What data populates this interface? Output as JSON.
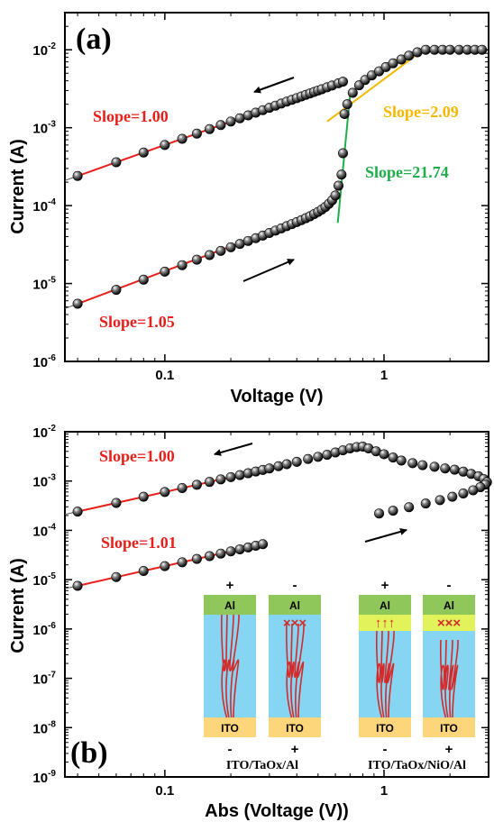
{
  "colors": {
    "red": "#e8201b",
    "orange": "#f5b800",
    "green": "#1fae4a",
    "fit_gray": "#555555",
    "marker": "#000000",
    "al": "#8fc75a",
    "oxide": "#86d6f3",
    "nio": "#e2f25a",
    "ito": "#fdd57a",
    "filament": "#d42a2a"
  },
  "chart_data": [
    {
      "type": "scatter",
      "panel_label": "(a)",
      "title": "",
      "xlabel": "Voltage (V)",
      "ylabel": "Current (A)",
      "xscale": "log",
      "yscale": "log",
      "xlim": [
        0.035,
        3.0
      ],
      "ylim": [
        1e-06,
        0.03
      ],
      "xticks": [
        0.1,
        1
      ],
      "xtick_labels": [
        "0.1",
        "1"
      ],
      "yticks": [
        1e-06,
        1e-05,
        0.0001,
        0.001,
        0.01
      ],
      "ytick_labels": [
        [
          "10",
          "-6"
        ],
        [
          "10",
          "-5"
        ],
        [
          "10",
          "-4"
        ],
        [
          "10",
          "-3"
        ],
        [
          "10",
          "-2"
        ]
      ],
      "series": [
        {
          "x": [
            0.04,
            0.06,
            0.08,
            0.1,
            0.12,
            0.14,
            0.16,
            0.18,
            0.2,
            0.22,
            0.24,
            0.26,
            0.28,
            0.3,
            0.32,
            0.34,
            0.36,
            0.38,
            0.4,
            0.42,
            0.44,
            0.46,
            0.48,
            0.5,
            0.52,
            0.54,
            0.56,
            0.58,
            0.6,
            0.62,
            0.64
          ],
          "y": [
            5.5e-06,
            8.3e-06,
            1.12e-05,
            1.42e-05,
            1.72e-05,
            2.02e-05,
            2.32e-05,
            2.62e-05,
            2.92e-05,
            3.22e-05,
            3.52e-05,
            3.82e-05,
            4.12e-05,
            4.45e-05,
            4.78e-05,
            5.1e-05,
            5.45e-05,
            5.8e-05,
            6.15e-05,
            6.5e-05,
            6.9e-05,
            7.3e-05,
            7.8e-05,
            8.3e-05,
            8.9e-05,
            9.6e-05,
            0.000105,
            0.000117,
            0.000135,
            0.00018,
            0.00025
          ]
        },
        {
          "x": [
            0.65,
            0.66
          ],
          "y": [
            0.00047,
            0.0015
          ]
        },
        {
          "x": [
            0.68,
            0.72,
            0.77,
            0.82,
            0.88,
            0.95,
            1.02,
            1.1,
            1.2,
            1.3,
            1.42,
            1.55,
            1.7,
            1.85,
            2.0,
            2.2,
            2.4,
            2.6,
            2.8
          ],
          "y": [
            0.002,
            0.0028,
            0.0035,
            0.0041,
            0.0047,
            0.0053,
            0.006,
            0.0067,
            0.0075,
            0.0084,
            0.0093,
            0.01,
            0.01,
            0.01,
            0.01,
            0.01,
            0.01,
            0.01,
            0.01
          ]
        },
        {
          "x": [
            0.04,
            0.06,
            0.08,
            0.1,
            0.12,
            0.14,
            0.16,
            0.18,
            0.2,
            0.22,
            0.24,
            0.26,
            0.28,
            0.3,
            0.32,
            0.34,
            0.36,
            0.38,
            0.4,
            0.42,
            0.44,
            0.46,
            0.48,
            0.5,
            0.52,
            0.55,
            0.58,
            0.62,
            0.65
          ],
          "y": [
            0.00024,
            0.00036,
            0.00048,
            0.0006,
            0.00072,
            0.00084,
            0.00096,
            0.00108,
            0.0012,
            0.00132,
            0.00144,
            0.00156,
            0.00168,
            0.0018,
            0.00192,
            0.00204,
            0.00216,
            0.00228,
            0.0024,
            0.00252,
            0.00264,
            0.00276,
            0.00288,
            0.003,
            0.00312,
            0.0033,
            0.00348,
            0.00372,
            0.0039
          ]
        }
      ],
      "fits": [
        {
          "label": "Slope=1.00",
          "color_key": "red",
          "x": [
            0.04,
            0.25
          ],
          "y": [
            0.00024,
            0.0015
          ]
        },
        {
          "label": "Slope=1.05",
          "color_key": "red",
          "x": [
            0.04,
            0.25
          ],
          "y": [
            5.5e-06,
            3.8e-05
          ]
        },
        {
          "label": "Slope=2.09",
          "color_key": "orange",
          "x": [
            0.55,
            1.4
          ],
          "y": [
            0.0012,
            0.0085
          ]
        },
        {
          "label": "Slope=21.74",
          "color_key": "green",
          "x": [
            0.615,
            0.705
          ],
          "y": [
            6e-05,
            0.0032
          ]
        }
      ],
      "annotations": {
        "slope_top": "Slope=1.00",
        "slope_bottom": "Slope=1.05",
        "slope_orange": "Slope=2.09",
        "slope_green": "Slope=21.74"
      }
    },
    {
      "type": "scatter",
      "panel_label": "(b)",
      "title": "",
      "xlabel": "Abs (Voltage (V))",
      "ylabel": "Current (A)",
      "xscale": "log",
      "yscale": "log",
      "xlim": [
        0.035,
        3.0
      ],
      "ylim": [
        1e-09,
        0.01
      ],
      "xticks": [
        0.1,
        1
      ],
      "xtick_labels": [
        "0.1",
        "1"
      ],
      "yticks": [
        1e-09,
        1e-08,
        1e-07,
        1e-06,
        1e-05,
        0.0001,
        0.001,
        0.01
      ],
      "ytick_labels": [
        [
          "10",
          "-9"
        ],
        [
          "10",
          "-8"
        ],
        [
          "10",
          "-7"
        ],
        [
          "10",
          "-6"
        ],
        [
          "10",
          "-5"
        ],
        [
          "10",
          "-4"
        ],
        [
          "10",
          "-3"
        ],
        [
          "10",
          "-2"
        ]
      ],
      "series": [
        {
          "x": [
            0.04,
            0.06,
            0.08,
            0.1,
            0.12,
            0.14,
            0.16,
            0.18,
            0.2,
            0.22,
            0.24,
            0.26,
            0.28,
            0.3,
            0.33,
            0.36,
            0.4,
            0.45,
            0.5,
            0.55,
            0.6,
            0.65,
            0.7,
            0.75,
            0.8
          ],
          "y": [
            0.00024,
            0.00036,
            0.00048,
            0.0006,
            0.00072,
            0.00084,
            0.00096,
            0.00108,
            0.0012,
            0.00132,
            0.00144,
            0.00156,
            0.00168,
            0.0018,
            0.002,
            0.0022,
            0.00245,
            0.0028,
            0.0031,
            0.0034,
            0.0038,
            0.0042,
            0.0046,
            0.0049,
            0.005
          ]
        },
        {
          "x": [
            0.85,
            0.92,
            1.0,
            1.1,
            1.2,
            1.35,
            1.5,
            1.7,
            1.9,
            2.1,
            2.3,
            2.5,
            2.7,
            2.85,
            2.95
          ],
          "y": [
            0.0046,
            0.004,
            0.0035,
            0.003,
            0.0026,
            0.0023,
            0.0021,
            0.00195,
            0.0018,
            0.0017,
            0.00155,
            0.0014,
            0.00125,
            0.0011,
            0.00095
          ]
        },
        {
          "x": [
            2.9,
            2.75,
            2.55,
            2.3,
            2.05,
            1.8,
            1.55,
            1.3,
            1.1,
            0.95
          ],
          "y": [
            0.00085,
            0.00075,
            0.00065,
            0.00056,
            0.00048,
            0.00041,
            0.00035,
            0.000295,
            0.00025,
            0.00022
          ]
        },
        {
          "x": [
            0.04,
            0.06,
            0.08,
            0.1,
            0.12,
            0.14,
            0.16,
            0.18,
            0.2,
            0.22,
            0.24,
            0.26,
            0.28
          ],
          "y": [
            7.5e-06,
            1.13e-05,
            1.5e-05,
            1.88e-05,
            2.25e-05,
            2.63e-05,
            3e-05,
            3.38e-05,
            3.75e-05,
            4.13e-05,
            4.5e-05,
            4.88e-05,
            5.25e-05
          ]
        }
      ],
      "fits": [
        {
          "label": "Slope=1.00",
          "color_key": "red",
          "x": [
            0.04,
            0.27
          ],
          "y": [
            0.00024,
            0.00162
          ]
        },
        {
          "label": "Slope=1.01",
          "color_key": "red",
          "x": [
            0.04,
            0.27
          ],
          "y": [
            7.5e-06,
            5.1e-05
          ]
        }
      ],
      "annotations": {
        "slope_top": "Slope=1.00",
        "slope_bottom": "Slope=1.01"
      },
      "inset": {
        "devices": [
          {
            "caption": "ITO/TaOx/Al",
            "cells": [
              {
                "top_sign": "+",
                "bottom_sign": "-",
                "top_layer": "Al",
                "bottom_layer": "ITO",
                "interlayer": false,
                "marks": ""
              },
              {
                "top_sign": "-",
                "bottom_sign": "+",
                "top_layer": "Al",
                "bottom_layer": "ITO",
                "interlayer": false,
                "marks": "×××"
              }
            ]
          },
          {
            "caption": "ITO/TaOx/NiO/Al",
            "cells": [
              {
                "top_sign": "+",
                "bottom_sign": "-",
                "top_layer": "Al",
                "bottom_layer": "ITO",
                "interlayer": true,
                "marks": "↑↑↑"
              },
              {
                "top_sign": "-",
                "bottom_sign": "+",
                "top_layer": "Al",
                "bottom_layer": "ITO",
                "interlayer": true,
                "marks": "×××"
              }
            ]
          }
        ]
      }
    }
  ]
}
